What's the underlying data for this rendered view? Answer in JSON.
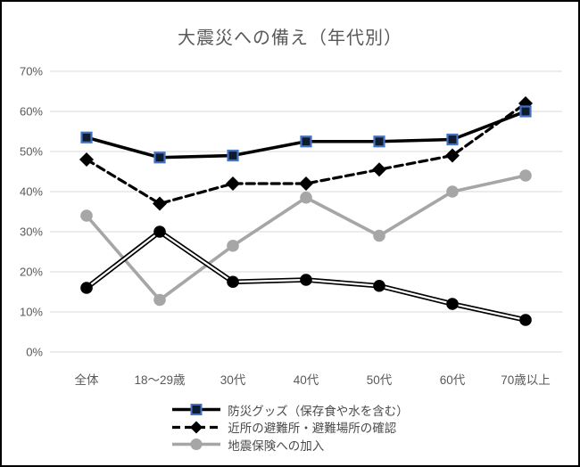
{
  "chart_data": {
    "type": "line",
    "title": "大震災への備え（年代別）",
    "categories": [
      "全体",
      "18～29歳",
      "30代",
      "40代",
      "50代",
      "60代",
      "70歳以上"
    ],
    "y_axis": {
      "ticks": [
        0,
        10,
        20,
        30,
        40,
        50,
        60,
        70
      ],
      "tick_labels": [
        "0%",
        "10%",
        "20%",
        "30%",
        "40%",
        "50%",
        "60%",
        "70%"
      ]
    },
    "ylim": [
      0,
      70
    ],
    "grid": "horizontal",
    "legend_position": "bottom",
    "series": [
      {
        "name": "防災グッズ（保存食や水を含む）",
        "values": [
          53.5,
          48.5,
          49,
          52.5,
          52.5,
          53,
          60
        ],
        "style": "solid-black-square",
        "in_legend": true
      },
      {
        "name": "近所の避難所・避難場所の確認",
        "values": [
          48,
          37,
          42,
          42,
          45.5,
          49,
          62
        ],
        "style": "dashed-black-diamond",
        "in_legend": true
      },
      {
        "name": "地震保険への加入",
        "values": [
          34,
          13,
          26.5,
          38.5,
          29,
          40,
          44
        ],
        "style": "solid-gray-circle",
        "in_legend": true
      },
      {
        "name": "",
        "values": [
          16,
          30,
          17.5,
          18,
          16.5,
          12,
          8
        ],
        "style": "double-black-circle",
        "in_legend": false
      }
    ],
    "colors": {
      "line_black": "#000000",
      "line_gray": "#a6a6a6",
      "marker_square_fill": "#0f1c2e",
      "marker_square_border": "#4472c4",
      "marker_diamond_fill": "#000000",
      "marker_circle_gray": "#a6a6a6",
      "marker_circle_black": "#000000",
      "grid_line": "#d9d9d9",
      "title_text": "#595959",
      "axis_text": "#595959",
      "legend_text": "#4a4a4a",
      "background": "#ffffff",
      "frame_border": "#000000"
    }
  }
}
